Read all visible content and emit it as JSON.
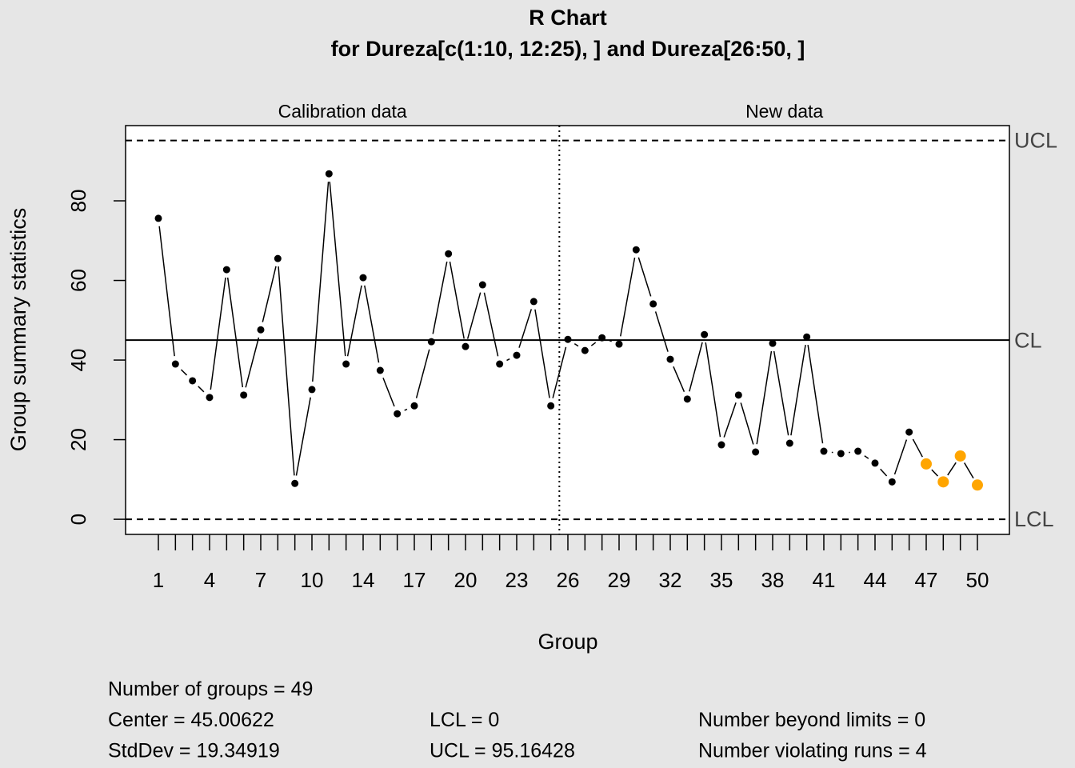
{
  "chart_data": {
    "type": "qcc_line",
    "title": "R Chart",
    "subtitle": "for Dureza[c(1:10, 12:25), ] and Dureza[26:50, ]",
    "x_label": "Group",
    "y_label": "Group summary statistics",
    "sections": [
      {
        "label": "Calibration data",
        "count": 24
      },
      {
        "label": "New data",
        "count": 25
      }
    ],
    "categories": [
      "1",
      null,
      null,
      "4",
      null,
      null,
      "7",
      null,
      null,
      "10",
      null,
      null,
      "14",
      null,
      null,
      "17",
      null,
      null,
      "20",
      null,
      null,
      "23",
      null,
      null,
      "26",
      null,
      null,
      "29",
      null,
      null,
      "32",
      null,
      null,
      "35",
      null,
      null,
      "38",
      null,
      null,
      "41",
      null,
      null,
      "44",
      null,
      null,
      "47",
      null,
      null,
      "50"
    ],
    "values": [
      75.6,
      39.0,
      34.8,
      30.6,
      62.7,
      31.2,
      47.6,
      65.5,
      9.0,
      32.6,
      86.8,
      39.0,
      60.7,
      37.4,
      26.5,
      28.5,
      44.6,
      66.7,
      43.4,
      58.9,
      39.0,
      41.2,
      54.7,
      28.5,
      45.2,
      42.4,
      45.6,
      44.0,
      67.7,
      54.1,
      40.2,
      30.2,
      46.4,
      18.7,
      31.2,
      16.9,
      44.2,
      19.1,
      45.8,
      17.1,
      16.5,
      17.1,
      14.1,
      9.4,
      21.9,
      13.9,
      9.4,
      15.9,
      8.6
    ],
    "point_colors": [
      "#000000",
      "#000000",
      "#000000",
      "#000000",
      "#000000",
      "#000000",
      "#000000",
      "#000000",
      "#000000",
      "#000000",
      "#000000",
      "#000000",
      "#000000",
      "#000000",
      "#000000",
      "#000000",
      "#000000",
      "#000000",
      "#000000",
      "#000000",
      "#000000",
      "#000000",
      "#000000",
      "#000000",
      "#000000",
      "#000000",
      "#000000",
      "#000000",
      "#000000",
      "#000000",
      "#000000",
      "#000000",
      "#000000",
      "#000000",
      "#000000",
      "#000000",
      "#000000",
      "#000000",
      "#000000",
      "#000000",
      "#000000",
      "#000000",
      "#000000",
      "#000000",
      "#000000",
      "#FFA500",
      "#FFA500",
      "#FFA500",
      "#FFA500"
    ],
    "limits": [
      {
        "label": "UCL",
        "value": 95.16428,
        "style": "dashed"
      },
      {
        "label": "CL",
        "value": 45.00622,
        "style": "solid"
      },
      {
        "label": "LCL",
        "value": 0,
        "style": "dashed"
      }
    ],
    "ylim": [
      -3.8,
      98.9
    ],
    "yticks": [
      0,
      20,
      40,
      60,
      80
    ],
    "stats": [
      [
        "Number of groups = 49",
        "Center = 45.00622",
        "StdDev = 19.34919"
      ],
      [
        "LCL = 0",
        "UCL = 95.16428"
      ],
      [
        "Number beyond limits = 0",
        "Number violating runs = 4"
      ]
    ]
  }
}
